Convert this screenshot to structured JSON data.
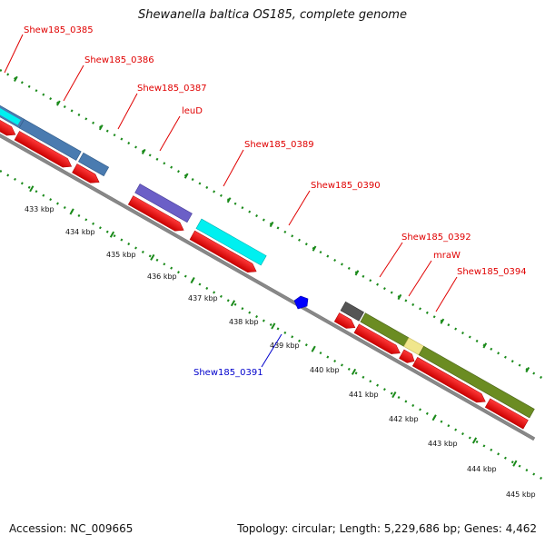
{
  "title": "Shewanella baltica OS185, complete genome",
  "footer": {
    "accession_label": "Accession:",
    "accession": "NC_009665",
    "topology_label": "Topology:",
    "topology": "circular",
    "length_label": "Length:",
    "length": "5,229,686 bp",
    "genes_label": "Genes:",
    "genes": "4,462"
  },
  "gene_labels": [
    {
      "id": "g0385",
      "text": "Shew185_0385",
      "color": "#e00000"
    },
    {
      "id": "g0386",
      "text": "Shew185_0386",
      "color": "#e00000"
    },
    {
      "id": "g0387",
      "text": "Shew185_0387",
      "color": "#e00000"
    },
    {
      "id": "leuD",
      "text": "leuD",
      "color": "#e00000"
    },
    {
      "id": "g0389",
      "text": "Shew185_0389",
      "color": "#e00000"
    },
    {
      "id": "g0390",
      "text": "Shew185_0390",
      "color": "#e00000"
    },
    {
      "id": "g0391",
      "text": "Shew185_0391",
      "color": "#0000cc"
    },
    {
      "id": "g0392",
      "text": "Shew185_0392",
      "color": "#e00000"
    },
    {
      "id": "mraW",
      "text": "mraW",
      "color": "#e00000"
    },
    {
      "id": "g0394",
      "text": "Shew185_0394",
      "color": "#e00000"
    }
  ],
  "ticks": [
    "433 kbp",
    "434 kbp",
    "435 kbp",
    "436 kbp",
    "437 kbp",
    "438 kbp",
    "439 kbp",
    "440 kbp",
    "441 kbp",
    "442 kbp",
    "443 kbp",
    "444 kbp",
    "445 kbp"
  ],
  "colors": {
    "cds": "#ee0000",
    "backbone": "#888888",
    "steelblue": "#4a7bb0",
    "cyan": "#00f0f0",
    "purple": "#6b5fc7",
    "gray": "#555555",
    "olive": "#6b8c22",
    "khaki": "#f0e68c",
    "green_dots": "#1a8a1a",
    "blue_gene": "#0000ff"
  }
}
